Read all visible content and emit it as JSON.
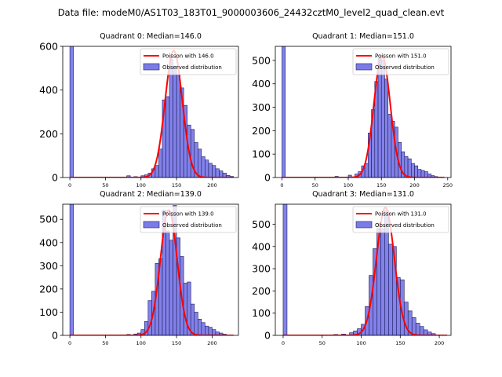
{
  "suptitle": "Data file: modeM0/AS1T03_183T01_9000003606_24432cztM0_level2_quad_clean.evt",
  "colors": {
    "bar_fill": "#7b7be8",
    "bar_edge": "#1c1c5c",
    "poisson": "#ff0000",
    "axis": "#000000",
    "background": "#ffffff"
  },
  "chart_data": [
    {
      "type": "bar",
      "title": "Quadrant 0: Median=146.0",
      "median": 146.0,
      "xlim": [
        -10,
        237
      ],
      "ylim": [
        0,
        600
      ],
      "xticks": [
        0,
        50,
        100,
        150,
        200
      ],
      "yticks": [
        0,
        200,
        400,
        600
      ],
      "legend_position": "top-right",
      "legend": [
        "Poisson with 146.0",
        "Observed distribution"
      ],
      "bins": [
        [
          0,
          600
        ],
        [
          80,
          8
        ],
        [
          90,
          4
        ],
        [
          100,
          8
        ],
        [
          105,
          12
        ],
        [
          110,
          20
        ],
        [
          115,
          40
        ],
        [
          120,
          55
        ],
        [
          125,
          130
        ],
        [
          130,
          355
        ],
        [
          135,
          370
        ],
        [
          140,
          540
        ],
        [
          145,
          510
        ],
        [
          150,
          470
        ],
        [
          155,
          410
        ],
        [
          160,
          330
        ],
        [
          165,
          240
        ],
        [
          170,
          220
        ],
        [
          175,
          160
        ],
        [
          180,
          130
        ],
        [
          185,
          95
        ],
        [
          190,
          80
        ],
        [
          195,
          65
        ],
        [
          200,
          55
        ],
        [
          205,
          40
        ],
        [
          210,
          30
        ],
        [
          215,
          20
        ],
        [
          220,
          10
        ],
        [
          225,
          5
        ]
      ],
      "poisson_peak": 580,
      "poisson_xrange": [
        0,
        230
      ]
    },
    {
      "type": "bar",
      "title": "Quadrant 1: Median=151.0",
      "median": 151.0,
      "xlim": [
        -10,
        255
      ],
      "ylim": [
        0,
        560
      ],
      "xticks": [
        0,
        50,
        100,
        150,
        200,
        250
      ],
      "yticks": [
        0,
        100,
        200,
        300,
        400,
        500
      ],
      "legend_position": "top-right",
      "legend": [
        "Poisson with 151.0",
        "Observed distribution"
      ],
      "bins": [
        [
          0,
          560
        ],
        [
          80,
          5
        ],
        [
          100,
          10
        ],
        [
          110,
          15
        ],
        [
          115,
          25
        ],
        [
          120,
          50
        ],
        [
          125,
          60
        ],
        [
          130,
          190
        ],
        [
          135,
          290
        ],
        [
          140,
          410
        ],
        [
          145,
          510
        ],
        [
          150,
          500
        ],
        [
          155,
          420
        ],
        [
          160,
          270
        ],
        [
          165,
          240
        ],
        [
          170,
          215
        ],
        [
          175,
          150
        ],
        [
          180,
          110
        ],
        [
          185,
          90
        ],
        [
          190,
          80
        ],
        [
          195,
          60
        ],
        [
          200,
          50
        ],
        [
          205,
          35
        ],
        [
          210,
          30
        ],
        [
          215,
          25
        ],
        [
          220,
          15
        ],
        [
          225,
          8
        ],
        [
          230,
          4
        ]
      ],
      "poisson_peak": 520,
      "poisson_xrange": [
        0,
        245
      ]
    },
    {
      "type": "bar",
      "title": "Quadrant 2: Median=139.0",
      "median": 139.0,
      "xlim": [
        -10,
        237
      ],
      "ylim": [
        0,
        565
      ],
      "xticks": [
        0,
        50,
        100,
        150,
        200
      ],
      "yticks": [
        0,
        100,
        200,
        300,
        400,
        500
      ],
      "legend_position": "top-right",
      "legend": [
        "Poisson with 139.0",
        "Observed distribution"
      ],
      "bins": [
        [
          0,
          565
        ],
        [
          80,
          4
        ],
        [
          90,
          6
        ],
        [
          95,
          10
        ],
        [
          100,
          25
        ],
        [
          105,
          60
        ],
        [
          110,
          150
        ],
        [
          115,
          190
        ],
        [
          120,
          310
        ],
        [
          125,
          330
        ],
        [
          130,
          540
        ],
        [
          135,
          450
        ],
        [
          140,
          410
        ],
        [
          145,
          560
        ],
        [
          150,
          420
        ],
        [
          155,
          340
        ],
        [
          160,
          225
        ],
        [
          165,
          230
        ],
        [
          170,
          135
        ],
        [
          175,
          100
        ],
        [
          180,
          70
        ],
        [
          185,
          55
        ],
        [
          190,
          40
        ],
        [
          195,
          35
        ],
        [
          200,
          25
        ],
        [
          205,
          15
        ],
        [
          210,
          10
        ],
        [
          215,
          5
        ]
      ],
      "poisson_peak": 540,
      "poisson_xrange": [
        0,
        230
      ]
    },
    {
      "type": "bar",
      "title": "Quadrant 3: Median=131.0",
      "median": 131.0,
      "xlim": [
        -10,
        215
      ],
      "ylim": [
        0,
        590
      ],
      "xticks": [
        0,
        50,
        100,
        150,
        200
      ],
      "yticks": [
        0,
        100,
        200,
        300,
        400,
        500
      ],
      "legend_position": "top-right",
      "legend": [
        "Poisson with 131.0",
        "Observed distribution"
      ],
      "bins": [
        [
          0,
          590
        ],
        [
          65,
          4
        ],
        [
          75,
          6
        ],
        [
          85,
          12
        ],
        [
          90,
          20
        ],
        [
          95,
          30
        ],
        [
          100,
          50
        ],
        [
          105,
          130
        ],
        [
          110,
          270
        ],
        [
          115,
          390
        ],
        [
          120,
          480
        ],
        [
          125,
          480
        ],
        [
          130,
          560
        ],
        [
          135,
          410
        ],
        [
          140,
          400
        ],
        [
          145,
          260
        ],
        [
          150,
          250
        ],
        [
          155,
          150
        ],
        [
          160,
          110
        ],
        [
          165,
          80
        ],
        [
          170,
          55
        ],
        [
          175,
          40
        ],
        [
          180,
          25
        ],
        [
          185,
          15
        ],
        [
          190,
          8
        ]
      ],
      "poisson_peak": 575,
      "poisson_xrange": [
        0,
        210
      ]
    }
  ]
}
